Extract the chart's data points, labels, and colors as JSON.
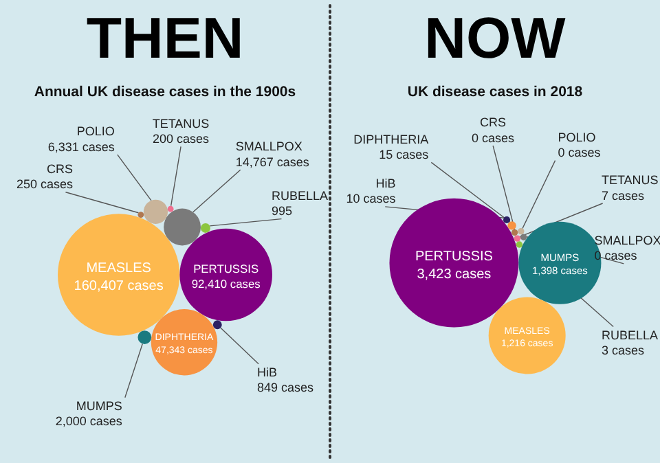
{
  "chart_data": [
    {
      "type": "other",
      "title": "THEN",
      "subtitle": "Annual UK disease cases in the 1900s",
      "categories": [
        "MEASLES",
        "PERTUSSIS",
        "DIPHTHERIA",
        "SMALLPOX",
        "POLIO",
        "MUMPS",
        "RUBELLA",
        "HiB",
        "CRS",
        "TETANUS"
      ],
      "values": [
        160407,
        92410,
        47343,
        14767,
        6331,
        2000,
        995,
        849,
        250,
        200
      ],
      "value_labels": [
        "160,407 cases",
        "92,410 cases",
        "47,343 cases",
        "14,767 cases",
        "6,331 cases",
        "2,000 cases",
        "995",
        "849 cases",
        "250 cases",
        "200 cases"
      ],
      "colors": [
        "#fdb94e",
        "#800080",
        "#f79342",
        "#7a7a7a",
        "#c9b49a",
        "#1a7a80",
        "#8cc63f",
        "#2b2163",
        "#b07850",
        "#f07090"
      ]
    },
    {
      "type": "other",
      "title": "NOW",
      "subtitle": "UK disease cases in 2018",
      "categories": [
        "PERTUSSIS",
        "MUMPS",
        "MEASLES",
        "RUBELLA",
        "TETANUS",
        "CRS",
        "SMALLPOX",
        "DIPHTHERIA",
        "POLIO",
        "HiB"
      ],
      "values": [
        3423,
        1398,
        1216,
        3,
        7,
        0,
        0,
        15,
        0,
        10
      ],
      "value_labels": [
        "3,423 cases",
        "1,398 cases",
        "1,216 cases",
        "3 cases",
        "7 cases",
        "0 cases",
        "0 cases",
        "15 cases",
        "0 cases",
        "10 cases"
      ],
      "colors": [
        "#800080",
        "#1a7a80",
        "#fdb94e",
        "#8cc63f",
        "#f07090",
        "#b07850",
        "#7a7a7a",
        "#f79342",
        "#c9b49a",
        "#2b2163"
      ]
    }
  ]
}
